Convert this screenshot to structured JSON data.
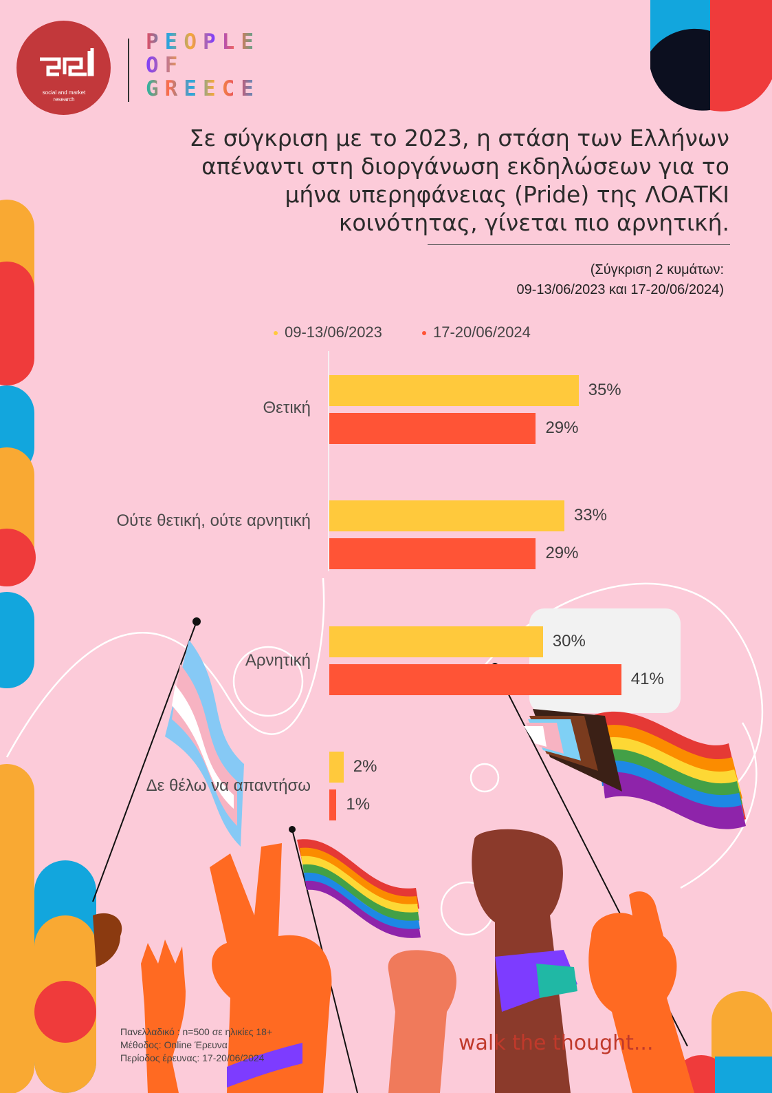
{
  "brand": {
    "logo_tagline": "social and market research",
    "people_of_greece": [
      "PEOPLE",
      "OF",
      "GREECE"
    ]
  },
  "headline": "Σε σύγκριση με το 2023, η στάση των Ελλήνων απέναντι στη διοργάνωση εκδηλώσεων για το μήνα υπερηφάνειας (Pride) της ΛΟΑΤΚΙ κοινότητας, γίνεται πιο αρνητική.",
  "comparison_note": [
    "(Σύγκριση 2 κυμάτων:",
    "09-13/06/2023  και 17-20/06/2024)"
  ],
  "chart_data": {
    "type": "bar",
    "orientation": "horizontal",
    "categories": [
      "Θετική",
      "Ούτε θετική, ούτε αρνητική",
      "Αρνητική",
      "Δε θέλω να απαντήσω"
    ],
    "series": [
      {
        "name": "09-13/06/2023",
        "values": [
          35,
          33,
          30,
          2
        ],
        "labels": [
          "35%",
          "33%",
          "30%",
          "2%"
        ],
        "color": "#ffc93c"
      },
      {
        "name": "17-20/06/2024",
        "values": [
          29,
          29,
          41,
          1
        ],
        "labels": [
          "29%",
          "29%",
          "41%",
          "1%"
        ],
        "color": "#ff5436"
      }
    ],
    "unit": "%",
    "xlim": [
      0,
      41
    ],
    "legend_position": "top"
  },
  "footer": {
    "lines": [
      "Πανελλαδικό : n=500 σε ηλικίες 18+",
      "Μέθοδος: Online Έρευνα",
      "Περίοδος έρευνας: 17-20/06/2024"
    ],
    "tagline": "walk the thought..."
  },
  "colors": {
    "background": "#fccbd9",
    "series_2023": "#ffc93c",
    "series_2024": "#ff5436",
    "logo_red": "#c2383b",
    "pog_letters": [
      "#e84a5f",
      "#2aa6de",
      "#f7a738",
      "#7d3cff",
      "#ff6b4a",
      "#20b8a5"
    ]
  }
}
